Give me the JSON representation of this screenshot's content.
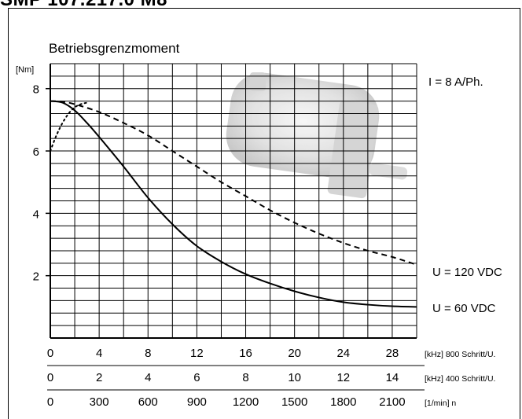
{
  "header": {
    "title": "SMP 107.217.0 M8"
  },
  "chart_data": {
    "type": "line",
    "title": "Betriebsgrenzmoment",
    "ylabel": "[Nm]",
    "ylim": [
      0,
      8.8
    ],
    "xlim": [
      0,
      30
    ],
    "yticks": [
      2,
      4,
      6,
      8
    ],
    "grid": true,
    "axes": [
      {
        "label": "[kHz] 800 Schritt/U.",
        "ticks": [
          "0",
          "4",
          "8",
          "12",
          "16",
          "20",
          "24",
          "28"
        ],
        "values": [
          0,
          4,
          8,
          12,
          16,
          20,
          24,
          28
        ]
      },
      {
        "label": "[kHz] 400 Schritt/U.",
        "ticks": [
          "0",
          "2",
          "4",
          "6",
          "8",
          "10",
          "12",
          "14"
        ],
        "values": [
          0,
          2,
          4,
          6,
          8,
          10,
          12,
          14
        ]
      },
      {
        "label": "[1/min] n",
        "ticks": [
          "0",
          "300",
          "600",
          "900",
          "1200",
          "1500",
          "1800",
          "2100"
        ],
        "values": [
          0,
          300,
          600,
          900,
          1200,
          1500,
          1800,
          2100
        ]
      }
    ],
    "annotations": [
      "I = 8 A/Ph."
    ],
    "series": [
      {
        "name": "U = 120 VDC",
        "style": "dashed",
        "x": [
          0,
          1,
          2,
          4,
          6,
          8,
          10,
          12,
          14,
          16,
          18,
          20,
          22,
          24,
          26,
          28,
          30
        ],
        "y": [
          7.6,
          7.58,
          7.5,
          7.25,
          6.9,
          6.5,
          6.0,
          5.5,
          5.0,
          4.55,
          4.1,
          3.7,
          3.35,
          3.05,
          2.8,
          2.6,
          2.35
        ]
      },
      {
        "name": "U = 60 VDC",
        "style": "solid",
        "x": [
          0,
          1,
          2,
          3,
          4,
          6,
          8,
          10,
          12,
          14,
          16,
          18,
          20,
          22,
          24,
          26,
          28,
          30
        ],
        "y": [
          7.6,
          7.55,
          7.3,
          6.9,
          6.45,
          5.5,
          4.5,
          3.65,
          2.95,
          2.45,
          2.05,
          1.75,
          1.5,
          1.3,
          1.15,
          1.07,
          1.02,
          1.0
        ]
      },
      {
        "name": "",
        "style": "dotted",
        "x": [
          0,
          0.5,
          1,
          1.5,
          2,
          2.5,
          3
        ],
        "y": [
          6.0,
          6.5,
          6.9,
          7.2,
          7.4,
          7.5,
          7.55
        ]
      }
    ]
  }
}
